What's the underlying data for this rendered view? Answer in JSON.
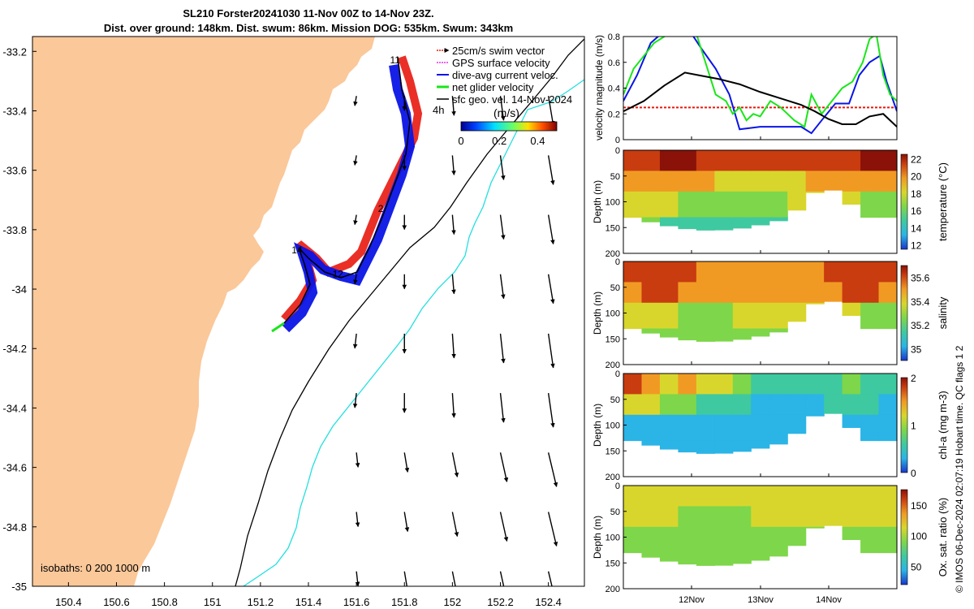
{
  "title_line1": "SL210 Forster20241030 11-Nov 00Z to 14-Nov 23Z.",
  "title_line2": "Dist. over ground: 148km. Dist. swum: 86km. Mission DOG: 535km. Swum: 343km",
  "side_text": "© IMOS 06-Dec-2024 02:07:19 Hobart time. QC flags 1  2",
  "colors": {
    "land": "#fbc89a",
    "swim_vector": "#e8180f",
    "gps_velocity": "#e632e6",
    "dive_avg": "#0a14e6",
    "net_velocity": "#19e619",
    "geo_velocity": "#000000",
    "isobath_200": "#000000",
    "isobath_1000": "#22e0e0"
  },
  "chart_data": [
    {
      "type": "map",
      "legend": {
        "placement": "top-right",
        "entries": [
          {
            "label": "25cm/s swim vector",
            "color": "#e8180f"
          },
          {
            "label": "GPS surface velocity",
            "color": "#e632e6"
          },
          {
            "label": "dive-avg current veloc.",
            "color": "#0a14e6"
          },
          {
            "label": "net glider velocity",
            "color": "#19e619"
          },
          {
            "label": "sfc geo. vel. 14-Nov-2024",
            "color": "#000000"
          }
        ]
      },
      "colorbar": {
        "label": "(m/s)",
        "ticks": [
          0,
          0.2,
          0.4
        ],
        "range": [
          0,
          0.5
        ],
        "note": "4h"
      },
      "x_ticks": [
        150.4,
        150.6,
        150.8,
        151,
        151.2,
        151.4,
        151.6,
        151.8,
        152,
        152.2,
        152.4
      ],
      "y_ticks": [
        -33.2,
        -33.4,
        -33.6,
        -33.8,
        -34,
        -34.2,
        -34.4,
        -34.6,
        -34.8,
        -35
      ],
      "xlim": [
        150.25,
        152.55
      ],
      "ylim": [
        -35.0,
        -33.15
      ],
      "isobaths_label": "isobaths: 0   200  1000 m",
      "day_labels": [
        {
          "text": "11",
          "lon": 151.74,
          "lat": -33.24
        },
        {
          "text": "2",
          "lon": 151.69,
          "lat": -33.74
        },
        {
          "text": "14",
          "lon": 151.33,
          "lat": -33.88
        },
        {
          "text": "12",
          "lon": 151.5,
          "lat": -33.96
        }
      ],
      "glider_track": [
        [
          151.72,
          -33.22
        ],
        [
          151.73,
          -33.3
        ],
        [
          151.79,
          -33.42
        ],
        [
          151.77,
          -33.58
        ],
        [
          151.67,
          -33.8
        ],
        [
          151.6,
          -33.93
        ],
        [
          151.51,
          -33.97
        ],
        [
          151.44,
          -33.95
        ],
        [
          151.36,
          -33.9
        ],
        [
          151.39,
          -33.98
        ],
        [
          151.35,
          -34.1
        ],
        [
          151.3,
          -34.15
        ]
      ],
      "geo_arrow_grid": {
        "lon": [
          151.6,
          151.8,
          152.0,
          152.2,
          152.4
        ],
        "lat": [
          -33.35,
          -33.55,
          -33.75,
          -33.95,
          -34.15,
          -34.35,
          -34.55,
          -34.75,
          -34.95
        ]
      }
    },
    {
      "type": "line",
      "ylabel": "velocity magnitude (m/s)",
      "ylim": [
        0,
        0.8
      ],
      "yticks": [
        0,
        0.2,
        0.4,
        0.6,
        0.8
      ],
      "xlim": [
        0,
        4
      ],
      "series": [
        {
          "color": "#e8180f",
          "x": [
            0,
            4
          ],
          "y": [
            0.25,
            0.25
          ]
        },
        {
          "color": "#0a14e6",
          "x": [
            0,
            0.2,
            0.4,
            0.55,
            0.8,
            1.0,
            1.15,
            1.35,
            1.55,
            1.7,
            2.0,
            2.3,
            2.6,
            2.75,
            2.9,
            3.1,
            3.3,
            3.45,
            3.6,
            3.75,
            3.85,
            4.0
          ],
          "y": [
            0.3,
            0.5,
            0.75,
            0.82,
            0.82,
            0.82,
            0.7,
            0.55,
            0.35,
            0.08,
            0.1,
            0.1,
            0.1,
            0.05,
            0.15,
            0.28,
            0.28,
            0.5,
            0.6,
            0.65,
            0.45,
            0.22
          ]
        },
        {
          "color": "#19e619",
          "x": [
            0,
            0.15,
            0.3,
            0.45,
            0.6,
            0.75,
            0.9,
            1.05,
            1.2,
            1.35,
            1.5,
            1.6,
            1.7,
            1.8,
            1.9,
            2.0,
            2.15,
            2.3,
            2.5,
            2.65,
            2.75,
            2.9,
            3.05,
            3.2,
            3.35,
            3.5,
            3.6,
            3.7,
            3.8,
            3.9,
            4.0
          ],
          "y": [
            0.35,
            0.55,
            0.65,
            0.75,
            0.8,
            0.9,
            0.95,
            0.85,
            0.6,
            0.35,
            0.3,
            0.2,
            0.25,
            0.15,
            0.2,
            0.18,
            0.3,
            0.25,
            0.15,
            0.1,
            0.35,
            0.2,
            0.3,
            0.4,
            0.45,
            0.6,
            0.78,
            0.82,
            0.5,
            0.35,
            0.3
          ]
        },
        {
          "color": "#000000",
          "x": [
            0,
            0.3,
            0.6,
            0.9,
            1.1,
            1.4,
            1.7,
            2.0,
            2.3,
            2.6,
            2.8,
            3.0,
            3.2,
            3.4,
            3.6,
            3.8,
            4.0
          ],
          "y": [
            0.22,
            0.3,
            0.42,
            0.52,
            0.5,
            0.47,
            0.43,
            0.37,
            0.32,
            0.27,
            0.22,
            0.16,
            0.12,
            0.12,
            0.18,
            0.2,
            0.1
          ]
        }
      ]
    },
    {
      "type": "heatmap",
      "ylabel": "Depth (m)",
      "cblabel": "temperature (°C)",
      "ylim": [
        200,
        0
      ],
      "yticks": [
        0,
        50,
        100,
        150,
        200
      ],
      "clim": [
        11.5,
        22.5
      ],
      "cbticks": [
        12,
        14,
        16,
        18,
        20,
        22
      ],
      "colors": [
        "#1a36c8",
        "#2bb4e6",
        "#3fc9a0",
        "#7ed64a",
        "#d8d62c",
        "#f09a24",
        "#c83c10",
        "#8a1208"
      ],
      "layers": [
        {
          "depth": 0,
          "values": [
            21,
            21.5,
            22,
            22,
            21.5,
            21,
            20.5,
            20.5,
            20.5,
            20.5,
            20.5,
            21,
            21.5,
            22,
            22
          ]
        },
        {
          "depth": 40,
          "values": [
            19,
            19.5,
            20,
            19.5,
            19,
            18.5,
            18.5,
            18.5,
            18.5,
            18.5,
            19,
            19.5,
            20,
            20,
            20
          ]
        },
        {
          "depth": 80,
          "values": [
            17,
            17.5,
            17,
            16.5,
            16,
            16,
            16,
            16.5,
            16.5,
            17,
            17,
            17,
            17,
            16.5,
            16.5
          ]
        },
        {
          "depth": 130,
          "values": [
            16,
            15.5,
            15,
            14.5,
            14,
            14,
            14,
            14.5,
            15,
            15,
            15,
            15,
            15,
            15,
            15
          ]
        }
      ]
    },
    {
      "type": "heatmap",
      "ylabel": "Depth (m)",
      "cblabel": "salinity",
      "ylim": [
        200,
        0
      ],
      "yticks": [
        0,
        50,
        100,
        150,
        200
      ],
      "clim": [
        34.9,
        35.7
      ],
      "cbticks": [
        35,
        35.2,
        35.4,
        35.6
      ],
      "colors": [
        "#1a36c8",
        "#2bb4e6",
        "#3fc9a0",
        "#7ed64a",
        "#d8d62c",
        "#f09a24",
        "#c83c10",
        "#8a1208"
      ],
      "layers": [
        {
          "depth": 0,
          "values": [
            35.55,
            35.6,
            35.6,
            35.55,
            35.5,
            35.5,
            35.5,
            35.5,
            35.5,
            35.5,
            35.5,
            35.55,
            35.6,
            35.6,
            35.6
          ]
        },
        {
          "depth": 40,
          "values": [
            35.5,
            35.55,
            35.55,
            35.5,
            35.45,
            35.45,
            35.5,
            35.5,
            35.5,
            35.5,
            35.5,
            35.5,
            35.55,
            35.55,
            35.5
          ]
        },
        {
          "depth": 80,
          "values": [
            35.35,
            35.4,
            35.35,
            35.3,
            35.3,
            35.3,
            35.35,
            35.4,
            35.4,
            35.4,
            35.4,
            35.4,
            35.35,
            35.3,
            35.3
          ]
        },
        {
          "depth": 130,
          "values": [
            35.3,
            35.25,
            35.2,
            35.2,
            35.2,
            35.2,
            35.25,
            35.3,
            35.3,
            35.3,
            35.3,
            35.3,
            35.3,
            35.25,
            35.25
          ]
        }
      ]
    },
    {
      "type": "heatmap",
      "ylabel": "Depth (m)",
      "cblabel": "chl-a (mg m-3)",
      "ylim": [
        200,
        0
      ],
      "yticks": [
        0,
        50,
        100,
        150,
        200
      ],
      "clim": [
        0,
        2
      ],
      "cbticks": [
        0,
        1,
        2
      ],
      "colors": [
        "#1a36c8",
        "#2bb4e6",
        "#3fc9a0",
        "#7ed64a",
        "#d8d62c",
        "#f09a24",
        "#c83c10",
        "#8a1208"
      ],
      "layers": [
        {
          "depth": 0,
          "values": [
            1.6,
            1.4,
            1.2,
            1.3,
            1.1,
            1.0,
            0.8,
            0.6,
            0.5,
            0.5,
            0.6,
            0.7,
            0.8,
            0.7,
            0.6
          ]
        },
        {
          "depth": 40,
          "values": [
            1.2,
            1.0,
            0.8,
            0.9,
            0.7,
            0.6,
            0.5,
            0.4,
            0.4,
            0.4,
            0.4,
            0.5,
            0.5,
            0.5,
            0.4
          ]
        },
        {
          "depth": 80,
          "values": [
            0.3,
            0.3,
            0.25,
            0.25,
            0.2,
            0.2,
            0.2,
            0.2,
            0.2,
            0.2,
            0.2,
            0.2,
            0.2,
            0.2,
            0.2
          ]
        },
        {
          "depth": 130,
          "values": [
            0.2,
            0.2,
            0.15,
            0.15,
            0.15,
            0.15,
            0.15,
            0.15,
            0.15,
            0.15,
            0.15,
            0.15,
            0.15,
            0.15,
            0.15
          ]
        }
      ]
    },
    {
      "type": "heatmap",
      "ylabel": "Depth (m)",
      "cblabel": "Ox. sat. ratio (%)",
      "ylim": [
        200,
        0
      ],
      "yticks": [
        0,
        50,
        100,
        150,
        200
      ],
      "clim": [
        20,
        175
      ],
      "cbticks": [
        50,
        100,
        150
      ],
      "colors": [
        "#1a36c8",
        "#2bb4e6",
        "#3fc9a0",
        "#7ed64a",
        "#d8d62c",
        "#f09a24",
        "#c83c10",
        "#8a1208"
      ],
      "layers": [
        {
          "depth": 0,
          "values": [
            110,
            112,
            115,
            112,
            110,
            110,
            108,
            108,
            108,
            110,
            110,
            112,
            112,
            110,
            110
          ]
        },
        {
          "depth": 40,
          "values": [
            100,
            100,
            98,
            96,
            95,
            95,
            96,
            98,
            98,
            98,
            100,
            100,
            100,
            98,
            98
          ]
        },
        {
          "depth": 80,
          "values": [
            92,
            90,
            88,
            86,
            85,
            85,
            86,
            88,
            90,
            90,
            90,
            92,
            92,
            90,
            90
          ]
        },
        {
          "depth": 130,
          "values": [
            88,
            86,
            84,
            82,
            82,
            82,
            84,
            86,
            88,
            88,
            88,
            88,
            88,
            88,
            88
          ]
        }
      ]
    }
  ],
  "shared_time_axis": {
    "ticks": [
      "12Nov",
      "13Nov",
      "14Nov"
    ]
  }
}
